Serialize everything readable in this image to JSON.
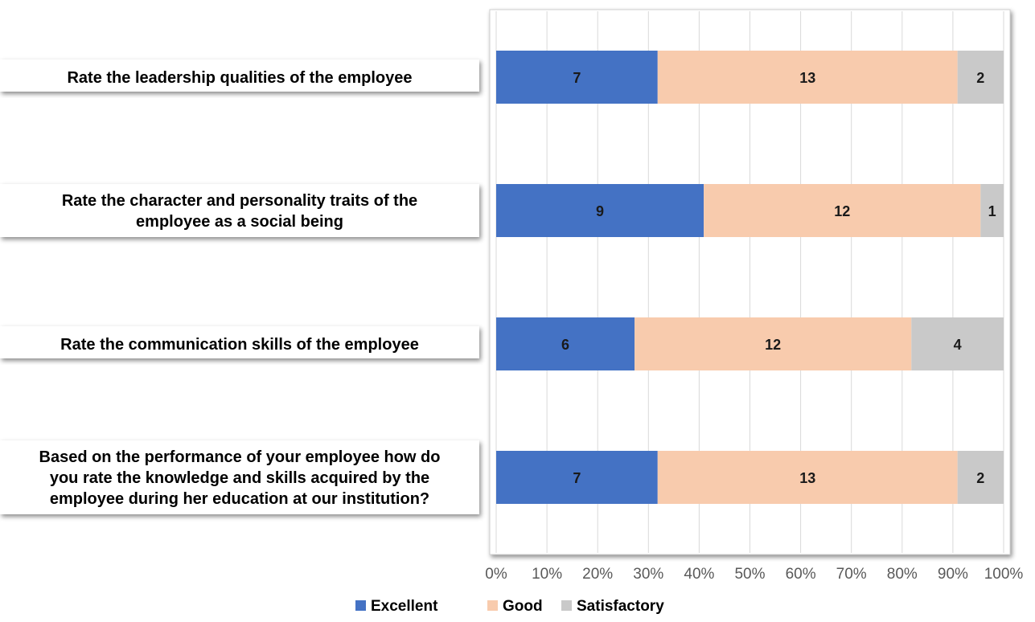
{
  "chart_data": {
    "type": "bar",
    "orientation": "horizontal",
    "stacked": "100%",
    "categories": [
      "Rate the leadership qualities of the employee",
      "Rate the character and personality traits of the employee as a social being",
      "Rate the communication skills of the employee",
      "Based on the performance of your employee how do you rate the knowledge and skills acquired by the employee during her education at our institution?"
    ],
    "category_lines": [
      [
        "Rate the leadership qualities of the employee"
      ],
      [
        "Rate the character and personality traits of the",
        "employee as a social being"
      ],
      [
        "Rate the communication skills of the employee"
      ],
      [
        "Based on the performance of your employee how do",
        "you rate the knowledge and skills acquired by the",
        "employee during her education at our institution?"
      ]
    ],
    "series": [
      {
        "name": "Excellent",
        "color": "#4472C4",
        "values": [
          7,
          9,
          6,
          7
        ]
      },
      {
        "name": "Good",
        "color": "#F8CBAD",
        "values": [
          13,
          12,
          12,
          13
        ]
      },
      {
        "name": "Satisfactory",
        "color": "#C9C9C9",
        "values": [
          2,
          1,
          4,
          2
        ]
      }
    ],
    "x_ticks": [
      "0%",
      "10%",
      "20%",
      "30%",
      "40%",
      "50%",
      "60%",
      "70%",
      "80%",
      "90%",
      "100%"
    ],
    "xlim": [
      0,
      100
    ],
    "grid": true,
    "legend_position": "bottom"
  }
}
